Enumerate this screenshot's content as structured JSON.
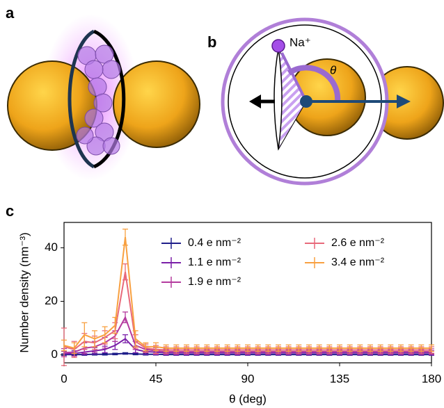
{
  "panels": {
    "a": "a",
    "b": "b",
    "c": "c"
  },
  "diagram_b": {
    "ion_label": "Na⁺",
    "angle_label": "θ"
  },
  "chart_data": {
    "type": "line",
    "xlabel": "θ (deg)",
    "ylabel": "Number density (nm⁻³)",
    "xlim": [
      0,
      180
    ],
    "ylim": [
      -3,
      49.5
    ],
    "xticks": [
      0,
      45,
      90,
      135,
      180
    ],
    "yticks": [
      0,
      20,
      40
    ],
    "legend": "upper right",
    "x": [
      0,
      5,
      10,
      15,
      20,
      25,
      30,
      35,
      40,
      45,
      50,
      55,
      60,
      65,
      70,
      75,
      80,
      85,
      90,
      95,
      100,
      105,
      110,
      115,
      120,
      125,
      130,
      135,
      140,
      145,
      150,
      155,
      160,
      165,
      170,
      175,
      180
    ],
    "series": [
      {
        "name": "0.4 e nm⁻²",
        "color": "#1f1e8a",
        "values": [
          0.1,
          0.1,
          0.1,
          0.2,
          0.2,
          0.3,
          0.5,
          0.3,
          0.2,
          0.2,
          0.1,
          0.1,
          0.1,
          0.1,
          0.1,
          0.1,
          0.1,
          0.1,
          0.1,
          0.1,
          0.1,
          0.1,
          0.1,
          0.1,
          0.1,
          0.1,
          0.1,
          0.1,
          0.1,
          0.1,
          0.1,
          0.1,
          0.1,
          0.1,
          0.1,
          0.1,
          0.1
        ],
        "errors": [
          0.3,
          0.3,
          0.3,
          0.3,
          0.3,
          0.3,
          0.3,
          0.3,
          0.3,
          0.3,
          0.3,
          0.3,
          0.3,
          0.3,
          0.3,
          0.3,
          0.3,
          0.3,
          0.3,
          0.3,
          0.3,
          0.3,
          0.3,
          0.3,
          0.3,
          0.3,
          0.3,
          0.3,
          0.3,
          0.3,
          0.3,
          0.3,
          0.3,
          0.3,
          0.3,
          0.3,
          0.3
        ]
      },
      {
        "name": "1.1 e nm⁻²",
        "color": "#7a1fa8",
        "values": [
          0.3,
          0.5,
          1.0,
          1.5,
          2.0,
          3.5,
          6.0,
          2.0,
          1.2,
          1.0,
          0.7,
          0.7,
          0.7,
          0.7,
          0.7,
          0.7,
          0.7,
          0.7,
          0.7,
          0.7,
          0.7,
          0.7,
          0.7,
          0.7,
          0.7,
          0.7,
          0.7,
          0.7,
          0.7,
          0.7,
          0.7,
          0.7,
          0.7,
          0.7,
          0.7,
          0.7,
          0.7
        ],
        "errors": [
          1.0,
          1.0,
          1.0,
          1.2,
          1.2,
          1.5,
          1.5,
          1.2,
          1.0,
          1.0,
          0.8,
          0.8,
          0.8,
          0.8,
          0.8,
          0.8,
          0.8,
          0.8,
          0.8,
          0.8,
          0.8,
          0.8,
          0.8,
          0.8,
          0.8,
          0.8,
          0.8,
          0.8,
          0.8,
          0.8,
          0.8,
          0.8,
          0.8,
          0.8,
          0.8,
          0.8,
          0.8
        ]
      },
      {
        "name": "1.9 e nm⁻²",
        "color": "#b43a9e",
        "values": [
          0.8,
          1.0,
          2.5,
          3.0,
          4.5,
          7.0,
          14.0,
          3.5,
          2.0,
          1.5,
          1.2,
          1.2,
          1.2,
          1.2,
          1.2,
          1.2,
          1.2,
          1.2,
          1.2,
          1.2,
          1.2,
          1.2,
          1.2,
          1.2,
          1.2,
          1.2,
          1.2,
          1.2,
          1.2,
          1.2,
          1.2,
          1.2,
          1.2,
          1.2,
          1.2,
          1.2,
          1.2
        ],
        "errors": [
          1.5,
          1.5,
          2.0,
          2.0,
          2.0,
          2.0,
          2.0,
          1.5,
          1.2,
          1.2,
          1.0,
          1.0,
          1.0,
          1.0,
          1.0,
          1.0,
          1.0,
          1.0,
          1.0,
          1.0,
          1.0,
          1.0,
          1.0,
          1.0,
          1.0,
          1.0,
          1.0,
          1.0,
          1.0,
          1.0,
          1.0,
          1.0,
          1.0,
          1.0,
          1.0,
          1.0,
          1.0
        ]
      },
      {
        "name": "2.6 e nm⁻²",
        "color": "#e8697a",
        "values": [
          3.0,
          2.0,
          5.0,
          4.5,
          6.5,
          9.0,
          31.0,
          5.0,
          2.5,
          2.0,
          1.8,
          1.8,
          1.8,
          1.8,
          1.8,
          1.8,
          1.8,
          1.8,
          1.8,
          1.8,
          1.8,
          1.8,
          1.8,
          1.8,
          1.8,
          1.8,
          1.8,
          1.8,
          1.8,
          1.8,
          1.8,
          1.8,
          1.8,
          1.8,
          1.8,
          1.8,
          1.8
        ],
        "errors": [
          7.0,
          3.0,
          3.0,
          2.5,
          2.5,
          3.0,
          3.0,
          2.5,
          1.5,
          1.5,
          1.2,
          1.2,
          1.2,
          1.2,
          1.2,
          1.2,
          1.2,
          1.2,
          1.2,
          1.2,
          1.2,
          1.2,
          1.2,
          1.2,
          1.2,
          1.2,
          1.2,
          1.2,
          1.2,
          1.2,
          1.2,
          1.2,
          1.2,
          1.2,
          1.2,
          1.2,
          1.2
        ]
      },
      {
        "name": "3.4 e nm⁻²",
        "color": "#f8a040",
        "values": [
          3.5,
          2.5,
          7.5,
          6.0,
          7.5,
          11.0,
          44.0,
          6.0,
          3.0,
          3.0,
          2.5,
          2.5,
          2.5,
          2.5,
          2.5,
          2.5,
          2.5,
          2.5,
          2.5,
          2.5,
          2.5,
          2.5,
          2.5,
          2.5,
          2.5,
          2.5,
          2.5,
          2.5,
          2.5,
          2.5,
          2.5,
          2.5,
          2.5,
          2.5,
          2.5,
          2.5,
          2.5
        ],
        "errors": [
          2.0,
          2.0,
          4.5,
          3.0,
          3.0,
          3.0,
          3.0,
          3.0,
          1.5,
          1.5,
          1.2,
          1.2,
          1.2,
          1.2,
          1.2,
          1.2,
          1.2,
          1.2,
          1.2,
          1.2,
          1.2,
          1.2,
          1.2,
          1.2,
          1.2,
          1.2,
          1.2,
          1.2,
          1.2,
          1.2,
          1.2,
          1.2,
          1.2,
          1.2,
          1.2,
          1.2,
          1.2
        ]
      }
    ]
  }
}
